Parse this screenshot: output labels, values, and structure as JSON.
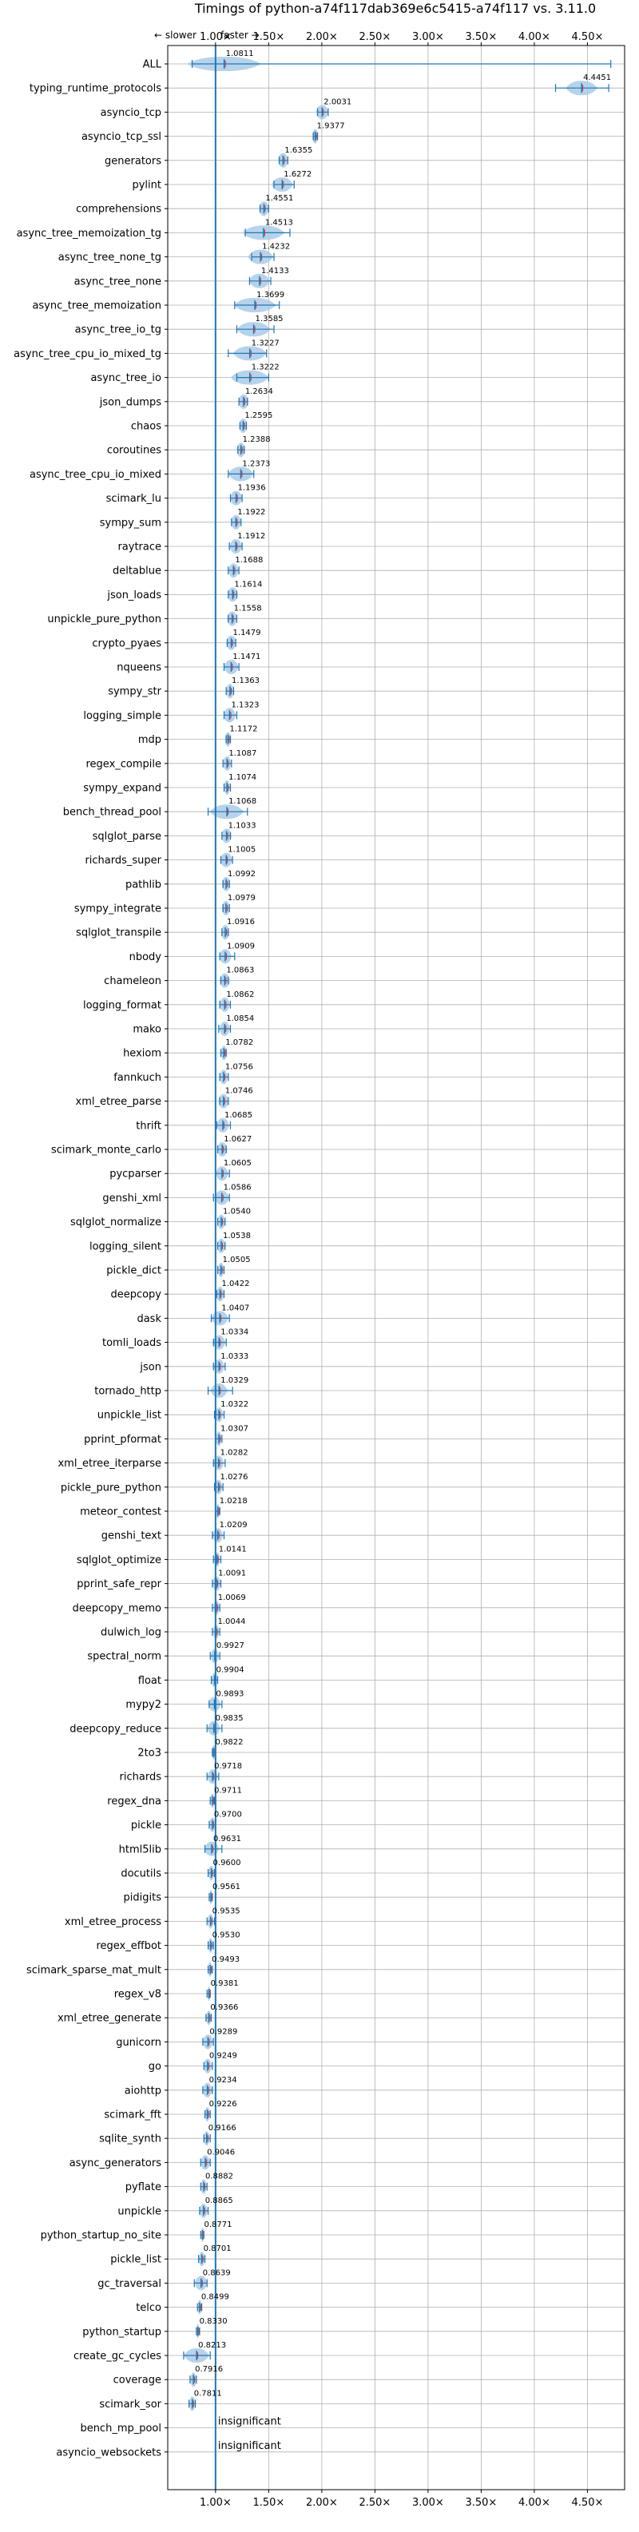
{
  "chart_data": {
    "type": "violin",
    "title": "Timings of python-a74f117dab369e6c5415-a74f117 vs. 3.11.0",
    "direction_labels": {
      "slower": "← slower",
      "faster": "faster →"
    },
    "xlim": [
      0.55,
      4.85
    ],
    "x_ticks": [
      1.0,
      1.5,
      2.0,
      2.5,
      3.0,
      3.5,
      4.0,
      4.5
    ],
    "x_tick_labels": [
      "1.00×",
      "1.50×",
      "2.00×",
      "2.50×",
      "3.00×",
      "3.50×",
      "4.00×",
      "4.50×"
    ],
    "grid": true,
    "reference_line": 1.0,
    "colors": {
      "violin": "#aacbe8",
      "mean_line": "#1f77b4",
      "median_line": "#d62728",
      "whisker": "#1f77b4",
      "reference": "#1f77b4",
      "grid": "#b0b0b0"
    },
    "benchmarks": [
      {
        "name": "ALL",
        "value": 1.0811,
        "label": "1.0811",
        "min": 0.78,
        "max": 4.72,
        "wq": 0.35
      },
      {
        "name": "typing_runtime_protocols",
        "value": 4.4451,
        "label": "4.4451",
        "min": 4.2,
        "max": 4.7,
        "wq": 0.15
      },
      {
        "name": "asyncio_tcp",
        "value": 2.0031,
        "label": "2.0031",
        "min": 1.96,
        "max": 2.06,
        "wq": 0.06
      },
      {
        "name": "asyncio_tcp_ssl",
        "value": 1.9377,
        "label": "1.9377",
        "min": 1.92,
        "max": 1.96,
        "wq": 0.03
      },
      {
        "name": "generators",
        "value": 1.6355,
        "label": "1.6355",
        "min": 1.6,
        "max": 1.68,
        "wq": 0.05
      },
      {
        "name": "pylint",
        "value": 1.6272,
        "label": "1.6272",
        "min": 1.55,
        "max": 1.74,
        "wq": 0.1
      },
      {
        "name": "comprehensions",
        "value": 1.4551,
        "label": "1.4551",
        "min": 1.42,
        "max": 1.5,
        "wq": 0.05
      },
      {
        "name": "async_tree_memoization_tg",
        "value": 1.4513,
        "label": "1.4513",
        "min": 1.28,
        "max": 1.7,
        "wq": 0.2
      },
      {
        "name": "async_tree_none_tg",
        "value": 1.4232,
        "label": "1.4232",
        "min": 1.34,
        "max": 1.55,
        "wq": 0.12
      },
      {
        "name": "async_tree_none",
        "value": 1.4133,
        "label": "1.4133",
        "min": 1.32,
        "max": 1.52,
        "wq": 0.1
      },
      {
        "name": "async_tree_memoization",
        "value": 1.3699,
        "label": "1.3699",
        "min": 1.18,
        "max": 1.6,
        "wq": 0.2
      },
      {
        "name": "async_tree_io_tg",
        "value": 1.3585,
        "label": "1.3585",
        "min": 1.2,
        "max": 1.55,
        "wq": 0.16
      },
      {
        "name": "async_tree_cpu_io_mixed_tg",
        "value": 1.3227,
        "label": "1.3227",
        "min": 1.12,
        "max": 1.48,
        "wq": 0.16
      },
      {
        "name": "async_tree_io",
        "value": 1.3222,
        "label": "1.3222",
        "min": 1.2,
        "max": 1.5,
        "wq": 0.18
      },
      {
        "name": "json_dumps",
        "value": 1.2634,
        "label": "1.2634",
        "min": 1.22,
        "max": 1.3,
        "wq": 0.05
      },
      {
        "name": "chaos",
        "value": 1.2595,
        "label": "1.2595",
        "min": 1.23,
        "max": 1.29,
        "wq": 0.04
      },
      {
        "name": "coroutines",
        "value": 1.2388,
        "label": "1.2388",
        "min": 1.21,
        "max": 1.27,
        "wq": 0.04
      },
      {
        "name": "async_tree_cpu_io_mixed",
        "value": 1.2373,
        "label": "1.2373",
        "min": 1.12,
        "max": 1.36,
        "wq": 0.12
      },
      {
        "name": "scimark_lu",
        "value": 1.1936,
        "label": "1.1936",
        "min": 1.14,
        "max": 1.25,
        "wq": 0.06
      },
      {
        "name": "sympy_sum",
        "value": 1.1922,
        "label": "1.1922",
        "min": 1.15,
        "max": 1.24,
        "wq": 0.05
      },
      {
        "name": "raytrace",
        "value": 1.1912,
        "label": "1.1912",
        "min": 1.13,
        "max": 1.25,
        "wq": 0.06
      },
      {
        "name": "deltablue",
        "value": 1.1688,
        "label": "1.1688",
        "min": 1.12,
        "max": 1.22,
        "wq": 0.05
      },
      {
        "name": "json_loads",
        "value": 1.1614,
        "label": "1.1614",
        "min": 1.12,
        "max": 1.2,
        "wq": 0.05
      },
      {
        "name": "unpickle_pure_python",
        "value": 1.1558,
        "label": "1.1558",
        "min": 1.12,
        "max": 1.2,
        "wq": 0.05
      },
      {
        "name": "crypto_pyaes",
        "value": 1.1479,
        "label": "1.1479",
        "min": 1.11,
        "max": 1.19,
        "wq": 0.05
      },
      {
        "name": "nqueens",
        "value": 1.1471,
        "label": "1.1471",
        "min": 1.08,
        "max": 1.22,
        "wq": 0.07
      },
      {
        "name": "sympy_str",
        "value": 1.1363,
        "label": "1.1363",
        "min": 1.1,
        "max": 1.17,
        "wq": 0.04
      },
      {
        "name": "logging_simple",
        "value": 1.1323,
        "label": "1.1323",
        "min": 1.08,
        "max": 1.2,
        "wq": 0.06
      },
      {
        "name": "mdp",
        "value": 1.1172,
        "label": "1.1172",
        "min": 1.1,
        "max": 1.14,
        "wq": 0.03
      },
      {
        "name": "regex_compile",
        "value": 1.1087,
        "label": "1.1087",
        "min": 1.07,
        "max": 1.15,
        "wq": 0.04
      },
      {
        "name": "sympy_expand",
        "value": 1.1074,
        "label": "1.1074",
        "min": 1.08,
        "max": 1.14,
        "wq": 0.03
      },
      {
        "name": "bench_thread_pool",
        "value": 1.1068,
        "label": "1.1068",
        "min": 0.93,
        "max": 1.3,
        "wq": 0.16
      },
      {
        "name": "sqlglot_parse",
        "value": 1.1033,
        "label": "1.1033",
        "min": 1.06,
        "max": 1.14,
        "wq": 0.05
      },
      {
        "name": "richards_super",
        "value": 1.1005,
        "label": "1.1005",
        "min": 1.05,
        "max": 1.16,
        "wq": 0.06
      },
      {
        "name": "pathlib",
        "value": 1.0992,
        "label": "1.0992",
        "min": 1.07,
        "max": 1.13,
        "wq": 0.04
      },
      {
        "name": "sympy_integrate",
        "value": 1.0979,
        "label": "1.0979",
        "min": 1.07,
        "max": 1.13,
        "wq": 0.04
      },
      {
        "name": "sqlglot_transpile",
        "value": 1.0916,
        "label": "1.0916",
        "min": 1.06,
        "max": 1.12,
        "wq": 0.04
      },
      {
        "name": "nbody",
        "value": 1.0909,
        "label": "1.0909",
        "min": 1.04,
        "max": 1.18,
        "wq": 0.06
      },
      {
        "name": "chameleon",
        "value": 1.0863,
        "label": "1.0863",
        "min": 1.05,
        "max": 1.12,
        "wq": 0.05
      },
      {
        "name": "logging_format",
        "value": 1.0862,
        "label": "1.0862",
        "min": 1.04,
        "max": 1.14,
        "wq": 0.05
      },
      {
        "name": "mako",
        "value": 1.0854,
        "label": "1.0854",
        "min": 1.03,
        "max": 1.14,
        "wq": 0.05
      },
      {
        "name": "hexiom",
        "value": 1.0782,
        "label": "1.0782",
        "min": 1.05,
        "max": 1.1,
        "wq": 0.03
      },
      {
        "name": "fannkuch",
        "value": 1.0756,
        "label": "1.0756",
        "min": 1.04,
        "max": 1.12,
        "wq": 0.04
      },
      {
        "name": "xml_etree_parse",
        "value": 1.0746,
        "label": "1.0746",
        "min": 1.04,
        "max": 1.12,
        "wq": 0.05
      },
      {
        "name": "thrift",
        "value": 1.0685,
        "label": "1.0685",
        "min": 1.01,
        "max": 1.14,
        "wq": 0.06
      },
      {
        "name": "scimark_monte_carlo",
        "value": 1.0627,
        "label": "1.0627",
        "min": 1.02,
        "max": 1.1,
        "wq": 0.05
      },
      {
        "name": "pycparser",
        "value": 1.0605,
        "label": "1.0605",
        "min": 1.0,
        "max": 1.13,
        "wq": 0.06
      },
      {
        "name": "genshi_xml",
        "value": 1.0586,
        "label": "1.0586",
        "min": 0.98,
        "max": 1.13,
        "wq": 0.07
      },
      {
        "name": "sqlglot_normalize",
        "value": 1.054,
        "label": "1.0540",
        "min": 1.02,
        "max": 1.09,
        "wq": 0.04
      },
      {
        "name": "logging_silent",
        "value": 1.0538,
        "label": "1.0538",
        "min": 1.02,
        "max": 1.09,
        "wq": 0.04
      },
      {
        "name": "pickle_dict",
        "value": 1.0505,
        "label": "1.0505",
        "min": 1.02,
        "max": 1.08,
        "wq": 0.03
      },
      {
        "name": "deepcopy",
        "value": 1.0422,
        "label": "1.0422",
        "min": 1.01,
        "max": 1.08,
        "wq": 0.04
      },
      {
        "name": "dask",
        "value": 1.0407,
        "label": "1.0407",
        "min": 0.96,
        "max": 1.13,
        "wq": 0.08
      },
      {
        "name": "tomli_loads",
        "value": 1.0334,
        "label": "1.0334",
        "min": 0.98,
        "max": 1.1,
        "wq": 0.06
      },
      {
        "name": "json",
        "value": 1.0333,
        "label": "1.0333",
        "min": 0.98,
        "max": 1.09,
        "wq": 0.05
      },
      {
        "name": "tornado_http",
        "value": 1.0329,
        "label": "1.0329",
        "min": 0.93,
        "max": 1.16,
        "wq": 0.08
      },
      {
        "name": "unpickle_list",
        "value": 1.0322,
        "label": "1.0322",
        "min": 0.99,
        "max": 1.08,
        "wq": 0.04
      },
      {
        "name": "pprint_pformat",
        "value": 1.0307,
        "label": "1.0307",
        "min": 1.0,
        "max": 1.06,
        "wq": 0.03
      },
      {
        "name": "xml_etree_iterparse",
        "value": 1.0282,
        "label": "1.0282",
        "min": 0.98,
        "max": 1.09,
        "wq": 0.05
      },
      {
        "name": "pickle_pure_python",
        "value": 1.0276,
        "label": "1.0276",
        "min": 0.99,
        "max": 1.07,
        "wq": 0.04
      },
      {
        "name": "meteor_contest",
        "value": 1.0218,
        "label": "1.0218",
        "min": 1.0,
        "max": 1.04,
        "wq": 0.02
      },
      {
        "name": "genshi_text",
        "value": 1.0209,
        "label": "1.0209",
        "min": 0.97,
        "max": 1.08,
        "wq": 0.05
      },
      {
        "name": "sqlglot_optimize",
        "value": 1.0141,
        "label": "1.0141",
        "min": 0.98,
        "max": 1.05,
        "wq": 0.03
      },
      {
        "name": "pprint_safe_repr",
        "value": 1.0091,
        "label": "1.0091",
        "min": 0.97,
        "max": 1.05,
        "wq": 0.04
      },
      {
        "name": "deepcopy_memo",
        "value": 1.0069,
        "label": "1.0069",
        "min": 0.97,
        "max": 1.04,
        "wq": 0.03
      },
      {
        "name": "dulwich_log",
        "value": 1.0044,
        "label": "1.0044",
        "min": 0.97,
        "max": 1.04,
        "wq": 0.03
      },
      {
        "name": "spectral_norm",
        "value": 0.9927,
        "label": "0.9927",
        "min": 0.95,
        "max": 1.04,
        "wq": 0.04
      },
      {
        "name": "float",
        "value": 0.9904,
        "label": "0.9904",
        "min": 0.96,
        "max": 1.02,
        "wq": 0.03
      },
      {
        "name": "mypy2",
        "value": 0.9893,
        "label": "0.9893",
        "min": 0.94,
        "max": 1.06,
        "wq": 0.06
      },
      {
        "name": "deepcopy_reduce",
        "value": 0.9835,
        "label": "0.9835",
        "min": 0.92,
        "max": 1.06,
        "wq": 0.06
      },
      {
        "name": "2to3",
        "value": 0.9822,
        "label": "0.9822",
        "min": 0.97,
        "max": 1.0,
        "wq": 0.02
      },
      {
        "name": "richards",
        "value": 0.9718,
        "label": "0.9718",
        "min": 0.92,
        "max": 1.03,
        "wq": 0.05
      },
      {
        "name": "regex_dna",
        "value": 0.9711,
        "label": "0.9711",
        "min": 0.95,
        "max": 0.99,
        "wq": 0.02
      },
      {
        "name": "pickle",
        "value": 0.97,
        "label": "0.9700",
        "min": 0.94,
        "max": 1.0,
        "wq": 0.03
      },
      {
        "name": "html5lib",
        "value": 0.9631,
        "label": "0.9631",
        "min": 0.9,
        "max": 1.06,
        "wq": 0.07
      },
      {
        "name": "docutils",
        "value": 0.96,
        "label": "0.9600",
        "min": 0.93,
        "max": 0.99,
        "wq": 0.03
      },
      {
        "name": "pidigits",
        "value": 0.9561,
        "label": "0.9561",
        "min": 0.94,
        "max": 0.97,
        "wq": 0.015
      },
      {
        "name": "xml_etree_process",
        "value": 0.9535,
        "label": "0.9535",
        "min": 0.92,
        "max": 0.99,
        "wq": 0.03
      },
      {
        "name": "regex_effbot",
        "value": 0.953,
        "label": "0.9530",
        "min": 0.93,
        "max": 0.98,
        "wq": 0.025
      },
      {
        "name": "scimark_sparse_mat_mult",
        "value": 0.9493,
        "label": "0.9493",
        "min": 0.93,
        "max": 0.97,
        "wq": 0.02
      },
      {
        "name": "regex_v8",
        "value": 0.9381,
        "label": "0.9381",
        "min": 0.92,
        "max": 0.95,
        "wq": 0.015
      },
      {
        "name": "xml_etree_generate",
        "value": 0.9366,
        "label": "0.9366",
        "min": 0.91,
        "max": 0.96,
        "wq": 0.025
      },
      {
        "name": "gunicorn",
        "value": 0.9289,
        "label": "0.9289",
        "min": 0.88,
        "max": 0.98,
        "wq": 0.05
      },
      {
        "name": "go",
        "value": 0.9249,
        "label": "0.9249",
        "min": 0.89,
        "max": 0.97,
        "wq": 0.04
      },
      {
        "name": "aiohttp",
        "value": 0.9234,
        "label": "0.9234",
        "min": 0.88,
        "max": 0.97,
        "wq": 0.045
      },
      {
        "name": "scimark_fft",
        "value": 0.9226,
        "label": "0.9226",
        "min": 0.9,
        "max": 0.95,
        "wq": 0.025
      },
      {
        "name": "sqlite_synth",
        "value": 0.9166,
        "label": "0.9166",
        "min": 0.89,
        "max": 0.95,
        "wq": 0.03
      },
      {
        "name": "async_generators",
        "value": 0.9046,
        "label": "0.9046",
        "min": 0.86,
        "max": 0.95,
        "wq": 0.045
      },
      {
        "name": "pyflate",
        "value": 0.8882,
        "label": "0.8882",
        "min": 0.86,
        "max": 0.92,
        "wq": 0.03
      },
      {
        "name": "unpickle",
        "value": 0.8865,
        "label": "0.8865",
        "min": 0.85,
        "max": 0.93,
        "wq": 0.04
      },
      {
        "name": "python_startup_no_site",
        "value": 0.8771,
        "label": "0.8771",
        "min": 0.86,
        "max": 0.89,
        "wq": 0.015
      },
      {
        "name": "pickle_list",
        "value": 0.8701,
        "label": "0.8701",
        "min": 0.84,
        "max": 0.9,
        "wq": 0.03
      },
      {
        "name": "gc_traversal",
        "value": 0.8639,
        "label": "0.8639",
        "min": 0.8,
        "max": 0.92,
        "wq": 0.06
      },
      {
        "name": "telco",
        "value": 0.8499,
        "label": "0.8499",
        "min": 0.83,
        "max": 0.87,
        "wq": 0.02
      },
      {
        "name": "python_startup",
        "value": 0.833,
        "label": "0.8330",
        "min": 0.82,
        "max": 0.85,
        "wq": 0.015
      },
      {
        "name": "create_gc_cycles",
        "value": 0.8213,
        "label": "0.8213",
        "min": 0.7,
        "max": 0.95,
        "wq": 0.12
      },
      {
        "name": "coverage",
        "value": 0.7916,
        "label": "0.7916",
        "min": 0.76,
        "max": 0.82,
        "wq": 0.03
      },
      {
        "name": "scimark_sor",
        "value": 0.7811,
        "label": "0.7811",
        "min": 0.75,
        "max": 0.81,
        "wq": 0.03
      },
      {
        "name": "bench_mp_pool",
        "value": null,
        "label": "insignificant"
      },
      {
        "name": "asyncio_websockets",
        "value": null,
        "label": "insignificant"
      }
    ]
  }
}
